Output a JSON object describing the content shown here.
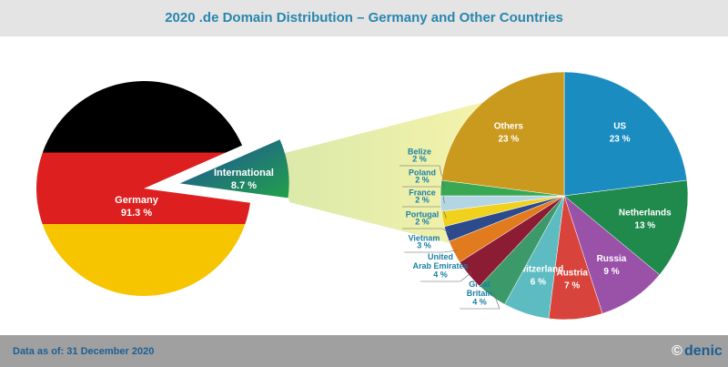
{
  "title": "2020 .de Domain Distribution – Germany and Other Countries",
  "chart_data": [
    {
      "type": "pie",
      "categories": [
        "Germany",
        "International"
      ],
      "values": [
        91.3,
        8.7
      ],
      "value_labels": [
        "91.3 %",
        "8.7 %"
      ]
    },
    {
      "type": "pie",
      "categories": [
        "US",
        "Netherlands",
        "Russia",
        "Austria",
        "Switzerland",
        "Great\nBritain",
        "United\nArab Emirates",
        "Vietnam",
        "Portugal",
        "France",
        "Poland",
        "Belize",
        "Others"
      ],
      "values": [
        23,
        13,
        9,
        7,
        6,
        4,
        4,
        3,
        2,
        2,
        2,
        2,
        23
      ],
      "value_labels": [
        "23 %",
        "13 %",
        "9 %",
        "7 %",
        "6 %",
        "4 %",
        "4 %",
        "3 %",
        "2 %",
        "2 %",
        "2 %",
        "2 %",
        "23 %"
      ],
      "colors": [
        "#1a8cc0",
        "#1f8a4c",
        "#9a52a8",
        "#d8433c",
        "#5dbcc2",
        "#3c9a6a",
        "#8c1c34",
        "#e27a1e",
        "#2c4a8c",
        "#f0d21e",
        "#b4d6e4",
        "#3aa852",
        "#c99a1e"
      ]
    }
  ],
  "footer": {
    "note": "Data as of: 31 December 2020",
    "copyright": "©",
    "logo": "denic"
  }
}
